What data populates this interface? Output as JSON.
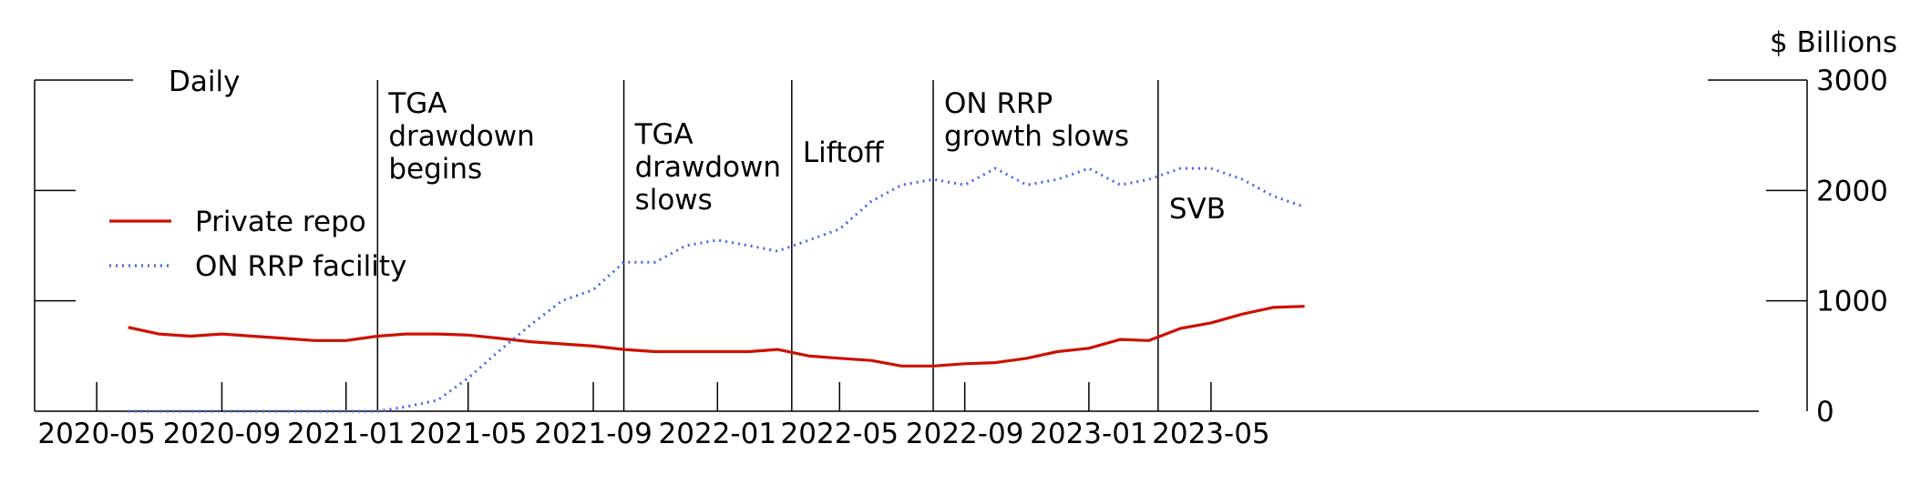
{
  "chart_data": {
    "type": "line",
    "frequency_label": "Daily",
    "y_unit_label": "$ Billions",
    "ylim": [
      0,
      3000
    ],
    "y_ticks": [
      0,
      1000,
      2000,
      3000
    ],
    "x_ticks": [
      "2020-05",
      "2020-09",
      "2021-01",
      "2021-05",
      "2021-09",
      "2022-01",
      "2022-05",
      "2022-09",
      "2023-01",
      "2023-05"
    ],
    "x_range": [
      "2020-03",
      "2023-10"
    ],
    "grid": false,
    "legend_position": "upper-left",
    "series": [
      {
        "name": "Private repo",
        "color": "#cc1100",
        "style": "solid",
        "points": [
          [
            "2020-06-01",
            760
          ],
          [
            "2020-07-01",
            700
          ],
          [
            "2020-08-01",
            680
          ],
          [
            "2020-09-01",
            700
          ],
          [
            "2020-10-01",
            680
          ],
          [
            "2020-11-01",
            660
          ],
          [
            "2020-12-01",
            640
          ],
          [
            "2021-01-01",
            640
          ],
          [
            "2021-02-01",
            680
          ],
          [
            "2021-03-01",
            700
          ],
          [
            "2021-04-01",
            700
          ],
          [
            "2021-05-01",
            690
          ],
          [
            "2021-06-01",
            660
          ],
          [
            "2021-07-01",
            630
          ],
          [
            "2021-08-01",
            610
          ],
          [
            "2021-09-01",
            590
          ],
          [
            "2021-10-01",
            560
          ],
          [
            "2021-11-01",
            540
          ],
          [
            "2021-12-01",
            540
          ],
          [
            "2022-01-01",
            540
          ],
          [
            "2022-02-01",
            540
          ],
          [
            "2022-03-01",
            560
          ],
          [
            "2022-04-01",
            500
          ],
          [
            "2022-05-01",
            480
          ],
          [
            "2022-06-01",
            460
          ],
          [
            "2022-07-01",
            410
          ],
          [
            "2022-08-01",
            410
          ],
          [
            "2022-09-01",
            430
          ],
          [
            "2022-10-01",
            440
          ],
          [
            "2022-11-01",
            480
          ],
          [
            "2022-12-01",
            540
          ],
          [
            "2023-01-01",
            570
          ],
          [
            "2023-02-01",
            650
          ],
          [
            "2023-03-01",
            640
          ],
          [
            "2023-04-01",
            750
          ],
          [
            "2023-05-01",
            800
          ],
          [
            "2023-06-01",
            880
          ],
          [
            "2023-07-01",
            940
          ],
          [
            "2023-08-01",
            950
          ]
        ]
      },
      {
        "name": "ON RRP facility",
        "color": "#4466ee",
        "style": "dotted",
        "points": [
          [
            "2020-06-01",
            0
          ],
          [
            "2020-09-01",
            0
          ],
          [
            "2020-12-01",
            0
          ],
          [
            "2021-02-01",
            0
          ],
          [
            "2021-03-01",
            40
          ],
          [
            "2021-04-01",
            100
          ],
          [
            "2021-05-01",
            300
          ],
          [
            "2021-06-01",
            550
          ],
          [
            "2021-07-01",
            780
          ],
          [
            "2021-08-01",
            1000
          ],
          [
            "2021-09-01",
            1100
          ],
          [
            "2021-10-01",
            1350
          ],
          [
            "2021-11-01",
            1350
          ],
          [
            "2021-12-01",
            1500
          ],
          [
            "2022-01-01",
            1550
          ],
          [
            "2022-02-01",
            1500
          ],
          [
            "2022-03-01",
            1450
          ],
          [
            "2022-04-01",
            1550
          ],
          [
            "2022-05-01",
            1650
          ],
          [
            "2022-06-01",
            1900
          ],
          [
            "2022-07-01",
            2050
          ],
          [
            "2022-08-01",
            2100
          ],
          [
            "2022-09-01",
            2050
          ],
          [
            "2022-10-01",
            2200
          ],
          [
            "2022-11-01",
            2050
          ],
          [
            "2022-12-01",
            2100
          ],
          [
            "2023-01-01",
            2200
          ],
          [
            "2023-02-01",
            2050
          ],
          [
            "2023-03-01",
            2100
          ],
          [
            "2023-04-01",
            2200
          ],
          [
            "2023-05-01",
            2200
          ],
          [
            "2023-06-01",
            2100
          ],
          [
            "2023-07-01",
            1950
          ],
          [
            "2023-08-01",
            1850
          ]
        ]
      }
    ],
    "event_lines": [
      {
        "label_lines": [
          "TGA",
          "drawdown",
          "begins"
        ],
        "date": "2021-02-01"
      },
      {
        "label_lines": [
          "TGA",
          "drawdown",
          "slows"
        ],
        "date": "2021-10-01"
      },
      {
        "label_lines": [
          "Liftoff"
        ],
        "date": "2022-03-15"
      },
      {
        "label_lines": [
          "ON RRP",
          "growth slows"
        ],
        "date": "2022-08-01"
      },
      {
        "label_lines": [
          "SVB"
        ],
        "date": "2023-03-10"
      }
    ]
  }
}
